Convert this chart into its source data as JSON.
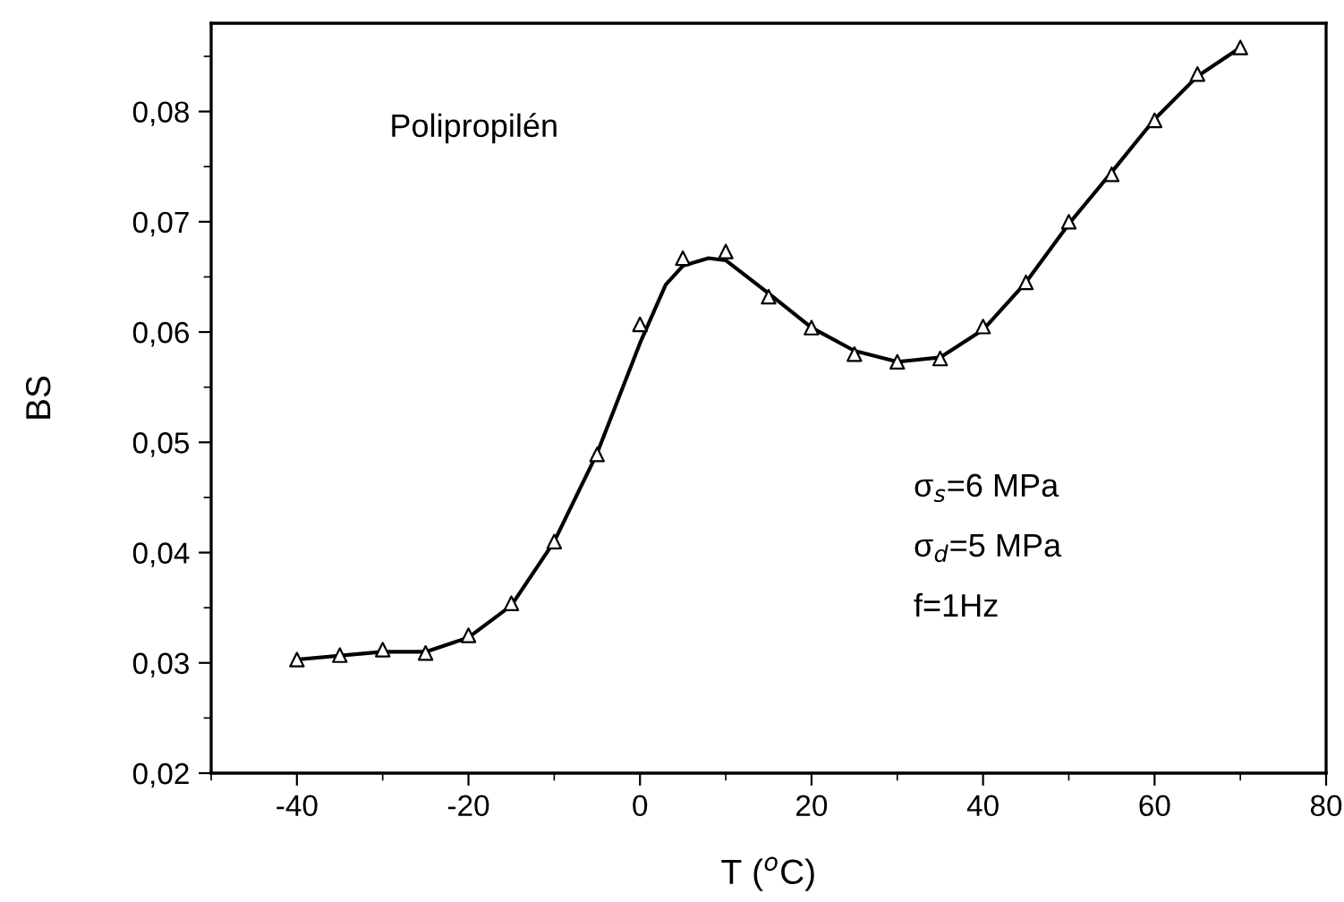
{
  "chart_data": {
    "type": "line",
    "xlabel": "T ($^{o}$C)",
    "ylabel": "BS",
    "annotations": [
      "Polipropilén",
      "σ$_{s}$=6 MPa",
      "σ$_{d}$=5 MPa",
      "f=1Hz"
    ],
    "xlim": [
      -50,
      80
    ],
    "xticks": [
      -40,
      -20,
      0,
      20,
      40,
      60,
      80
    ],
    "ylim": [
      0.02,
      0.088
    ],
    "yticks": [
      {
        "value": 0.02,
        "label": "0,02"
      },
      {
        "value": 0.03,
        "label": "0,03"
      },
      {
        "value": 0.04,
        "label": "0,04"
      },
      {
        "value": 0.05,
        "label": "0,05"
      },
      {
        "value": 0.06,
        "label": "0,06"
      },
      {
        "value": 0.07,
        "label": "0,07"
      },
      {
        "value": 0.08,
        "label": "0,08"
      }
    ],
    "grid": false,
    "legend": false,
    "series": [
      {
        "type": "scatter",
        "marker": "triangle",
        "color": "#000000",
        "x": [
          -40,
          -35,
          -30,
          -25,
          -20,
          -15,
          -10,
          -5,
          0,
          5,
          10,
          15,
          20,
          25,
          30,
          35,
          40,
          45,
          50,
          55,
          60,
          65,
          70
        ],
        "values": [
          0.0303,
          0.0307,
          0.0312,
          0.0309,
          0.0325,
          0.0354,
          0.041,
          0.0489,
          0.0607,
          0.0667,
          0.0673,
          0.0632,
          0.0604,
          0.058,
          0.0573,
          0.0576,
          0.0605,
          0.0645,
          0.07,
          0.0743,
          0.0792,
          0.0834,
          0.0858
        ]
      },
      {
        "marker": "none",
        "line_style": "solid",
        "color": "#000000",
        "x": [
          -40,
          -30,
          -25,
          -20,
          -15,
          -10,
          -5,
          -2,
          0,
          3,
          5,
          8,
          10,
          15,
          20,
          25,
          30,
          35,
          40,
          45,
          50,
          55,
          60,
          65,
          70
        ],
        "values": [
          0.0303,
          0.031,
          0.031,
          0.0323,
          0.0352,
          0.041,
          0.049,
          0.055,
          0.059,
          0.0643,
          0.066,
          0.0667,
          0.0665,
          0.0635,
          0.0604,
          0.0583,
          0.0573,
          0.0577,
          0.0602,
          0.0645,
          0.0698,
          0.0745,
          0.0793,
          0.0832,
          0.0858
        ]
      }
    ]
  }
}
